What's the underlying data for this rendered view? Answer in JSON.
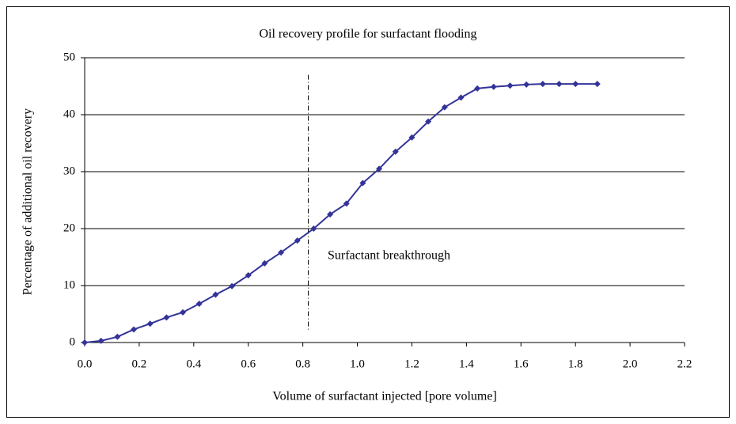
{
  "chart_data": {
    "type": "line",
    "title": "Oil recovery profile for surfactant flooding",
    "x_label": "Volume of surfactant injected [pore volume]",
    "y_label": "Percentage of additional oil recovery",
    "annotation": "Surfactant breakthrough",
    "vline_x": 0.82,
    "x": [
      0,
      0.06,
      0.12,
      0.18,
      0.24,
      0.3,
      0.36,
      0.42,
      0.48,
      0.54,
      0.6,
      0.66,
      0.72,
      0.78,
      0.84,
      0.9,
      0.96,
      1.02,
      1.08,
      1.14,
      1.2,
      1.26,
      1.32,
      1.38,
      1.44,
      1.5,
      1.56,
      1.62,
      1.68,
      1.74,
      1.8,
      1.88
    ],
    "series": [
      {
        "color": "#333399",
        "values": [
          0,
          0.3,
          1.0,
          2.3,
          3.3,
          4.4,
          5.3,
          6.8,
          8.4,
          9.9,
          11.8,
          13.9,
          15.8,
          17.9,
          20.0,
          22.5,
          24.4,
          28.0,
          30.5,
          33.5,
          36.0,
          38.8,
          41.3,
          43.0,
          44.6,
          44.9,
          45.1,
          45.3,
          45.4,
          45.4,
          45.4,
          45.4
        ]
      }
    ],
    "xlim": [
      0,
      2.2
    ],
    "xticks": [
      {
        "value": 0,
        "label": "0.0"
      },
      0.2,
      0.4,
      0.6,
      0.8,
      {
        "value": 1,
        "label": "1.0"
      },
      1.2,
      1.4,
      1.6,
      1.8,
      {
        "value": 2,
        "label": "2.0"
      },
      2.2
    ],
    "ylim": [
      0,
      50
    ],
    "yticks": [
      0,
      10,
      20,
      30,
      40,
      50
    ],
    "grid": true
  }
}
